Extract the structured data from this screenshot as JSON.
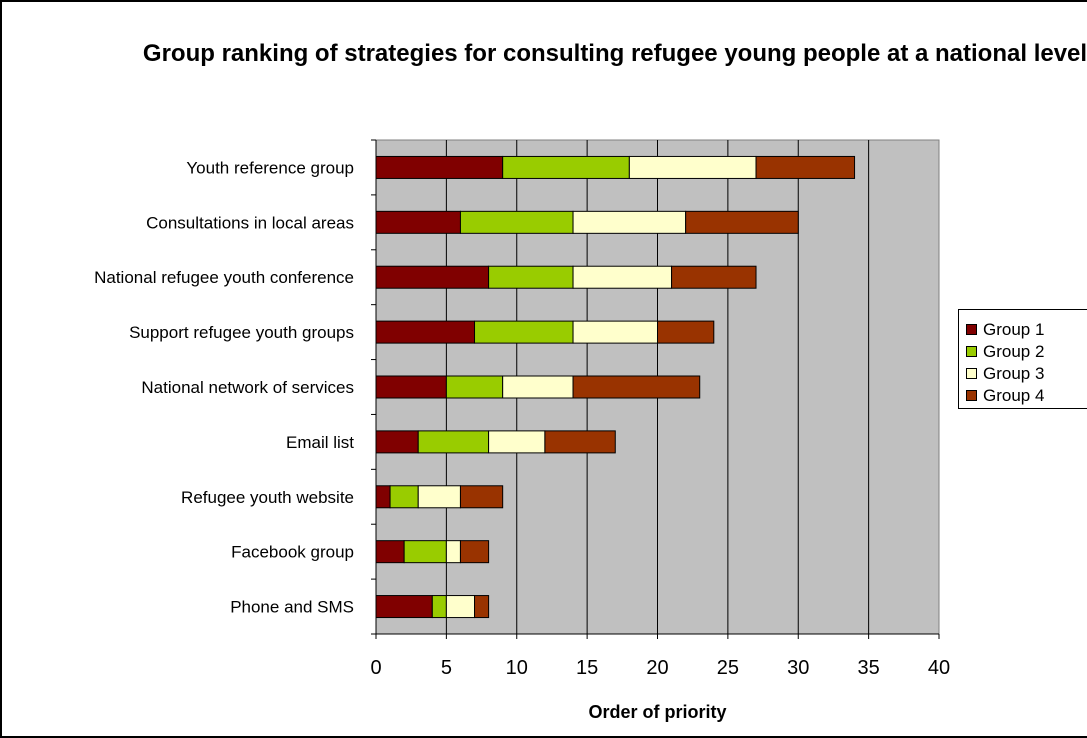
{
  "chart_data": {
    "type": "bar",
    "orientation": "horizontal",
    "stacked": true,
    "title": "Group ranking of strategies for consulting refugee young people at a national level",
    "xlabel": "Order of priority",
    "ylabel": "",
    "xlim": [
      0,
      40
    ],
    "xticks": [
      "0",
      "5",
      "10",
      "15",
      "20",
      "25",
      "30",
      "35",
      "40"
    ],
    "grid": true,
    "legend_position": "right",
    "categories": [
      "Youth reference group",
      "Consultations in local areas",
      "National refugee youth conference",
      "Support refugee youth groups",
      "National network of services",
      "Email list",
      "Refugee youth website",
      "Facebook group",
      "Phone and SMS"
    ],
    "series": [
      {
        "name": "Group 1",
        "color": "#800000",
        "values": [
          9,
          6,
          8,
          7,
          5,
          3,
          1,
          2,
          4
        ]
      },
      {
        "name": "Group 2",
        "color": "#99CC00",
        "values": [
          9,
          8,
          6,
          7,
          4,
          5,
          2,
          3,
          1
        ]
      },
      {
        "name": "Group 3",
        "color": "#FFFFCC",
        "values": [
          9,
          8,
          7,
          6,
          5,
          4,
          3,
          1,
          2
        ]
      },
      {
        "name": "Group 4",
        "color": "#993300",
        "values": [
          7,
          8,
          6,
          4,
          9,
          5,
          3,
          2,
          1
        ]
      }
    ],
    "plot_background": "#C0C0C0"
  }
}
